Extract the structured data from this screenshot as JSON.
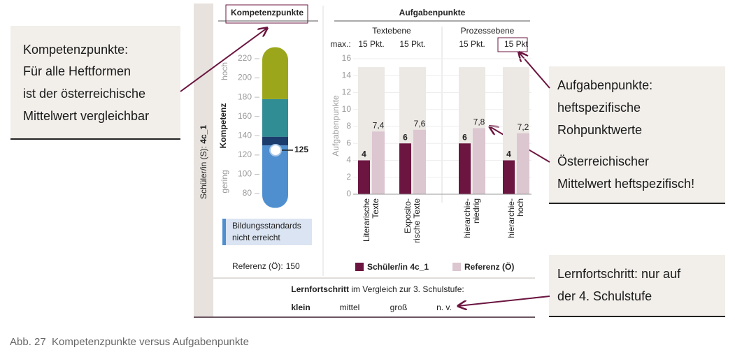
{
  "student": {
    "label": "Schüler/in (S): ",
    "id": "4c_1"
  },
  "callouts": {
    "kompetenz": [
      "Kompetenzpunkte:",
      "Für alle Heftformen",
      "ist der österreichische",
      "Mittelwert vergleichbar"
    ],
    "aufgaben": [
      "Aufgabenpunkte:",
      "heftspezifische",
      "Rohpunktwerte"
    ],
    "mittelwert": [
      "Österreichischer",
      "Mittelwert heftspezifisch!"
    ],
    "lernfortschritt": [
      "Lernfortschritt: nur auf",
      "der 4. Schulstufe"
    ]
  },
  "chart_data": [
    {
      "type": "gauge",
      "title": "Kompetenzpunkte",
      "ylabel": "Kompetenz",
      "high_label": "hoch",
      "low_label": "gering",
      "ylim": [
        80,
        220
      ],
      "yticks": [
        80,
        100,
        120,
        140,
        160,
        180,
        200,
        220
      ],
      "bands": [
        {
          "from": 65,
          "to": 130,
          "color": "#4f8fcf"
        },
        {
          "from": 130,
          "to": 139,
          "color": "#1b3d6d"
        },
        {
          "from": 139,
          "to": 178,
          "color": "#2f8d93"
        },
        {
          "from": 178,
          "to": 232,
          "color": "#9ba61b"
        }
      ],
      "value": 125,
      "legend": {
        "lines": [
          "Bildungsstandards",
          "nicht erreicht"
        ],
        "color": "#4f8fcf"
      },
      "reference": {
        "label": "Referenz (Ö):",
        "value": 150
      }
    },
    {
      "type": "bar",
      "title": "Aufgabenpunkte",
      "groups": [
        "Textebene",
        "Prozessebene"
      ],
      "max_label": "max.:",
      "max_values": [
        15,
        15,
        15,
        15
      ],
      "max_value_labels": [
        "15 Pkt.",
        "15 Pkt.",
        "15 Pkt.",
        "15 Pkt"
      ],
      "max_color": "#ece8e4",
      "categories": [
        [
          "Literarische",
          "Texte"
        ],
        [
          "Exposito-",
          "rische Texte"
        ],
        [
          "hierarchie-",
          "niedrig"
        ],
        [
          "hierarchie-",
          "hoch"
        ]
      ],
      "ylabel": "Aufgabenpunkte",
      "ylim": [
        0,
        16
      ],
      "yticks": [
        0,
        2,
        4,
        6,
        8,
        10,
        12,
        14,
        16
      ],
      "series": [
        {
          "name": "Schüler/in 4c_1",
          "color": "#6b1540",
          "values": [
            4,
            6,
            6,
            4
          ]
        },
        {
          "name": "Referenz (Ö)",
          "color": "#dcc6d0",
          "values": [
            7.4,
            7.6,
            7.8,
            7.2
          ],
          "value_labels": [
            "7,4",
            "7,6",
            "7,8",
            "7,2"
          ]
        }
      ]
    }
  ],
  "lernfortschritt": {
    "label": "Lernfortschritt",
    "text": " im Vergleich zur 3. Schulstufe:",
    "options": [
      "klein",
      "mittel",
      "groß",
      "n. v."
    ],
    "selected": 0
  },
  "caption": "Abb. 27  Kompetenzpunkte versus Aufgabenpunkte"
}
